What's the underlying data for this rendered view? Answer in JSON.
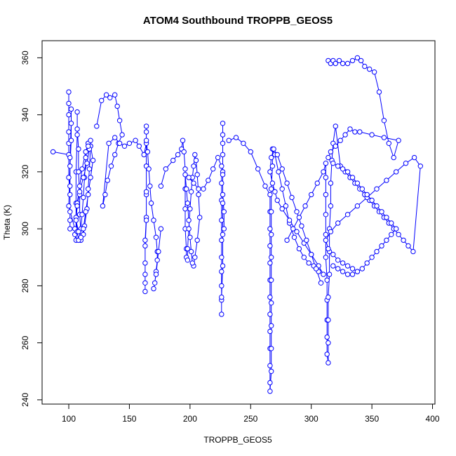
{
  "chart_data": {
    "type": "scatter",
    "title": "ATOM4 Southbound TROPPB_GEOS5",
    "xlabel": "TROPPB_GEOS5",
    "ylabel": "Theta (K)",
    "xlim": [
      78,
      402
    ],
    "ylim": [
      238.5,
      366
    ],
    "xticks": [
      100,
      150,
      200,
      250,
      300,
      350,
      400
    ],
    "yticks": [
      240,
      260,
      280,
      300,
      320,
      340,
      360
    ],
    "grid": false,
    "legend": "none",
    "marker": "open-circle",
    "connect_points": true,
    "color": "#0000ff",
    "series": [
      {
        "x": [
          87,
          100,
          100,
          100,
          100,
          100,
          100,
          100,
          101,
          101,
          101,
          101,
          101,
          101,
          102,
          102,
          102,
          101,
          100,
          105,
          105,
          106,
          106,
          106,
          107,
          107,
          107,
          108,
          108,
          109,
          109,
          110,
          110,
          111,
          112,
          113,
          114,
          116,
          118,
          117,
          116,
          115,
          113,
          112,
          110,
          108,
          107,
          106,
          107,
          109,
          111,
          114,
          116,
          118,
          120,
          118,
          116,
          114,
          112,
          110,
          108,
          106,
          107,
          109,
          112,
          115,
          117,
          118,
          116
        ],
        "y": [
          327,
          326,
          334,
          344,
          348,
          340,
          330,
          318,
          312,
          306,
          303,
          300,
          315,
          325,
          337,
          342,
          331,
          322,
          308,
          300,
          298,
          296,
          309,
          320,
          333,
          341,
          335,
          328,
          320,
          312,
          305,
          299,
          300,
          305,
          311,
          318,
          325,
          330,
          329,
          321,
          314,
          307,
          301,
          298,
          296,
          296,
          299,
          304,
          309,
          315,
          321,
          327,
          330,
          329,
          324,
          318,
          312,
          306,
          300,
          297,
          299,
          303,
          308,
          313,
          318,
          323,
          328,
          331,
          329
        ]
      },
      {
        "x": [
          123,
          127,
          131,
          134,
          138,
          140,
          142,
          144,
          141,
          138,
          135,
          132,
          130,
          128,
          133,
          138,
          142,
          146,
          150,
          155,
          158,
          162,
          164,
          164,
          164,
          164,
          164,
          164,
          163,
          163,
          163,
          163,
          163,
          163,
          164,
          164,
          164,
          164,
          165,
          166,
          167,
          168,
          170,
          172,
          173,
          173,
          172,
          171,
          170,
          172,
          174,
          176
        ],
        "y": [
          336,
          345,
          347,
          346,
          347,
          343,
          338,
          333,
          330,
          326,
          322,
          317,
          312,
          308,
          330,
          332,
          330,
          329,
          330,
          331,
          329,
          326,
          330,
          334,
          336,
          322,
          312,
          304,
          296,
          288,
          281,
          278,
          284,
          294,
          303,
          313,
          322,
          331,
          327,
          321,
          315,
          309,
          303,
          297,
          292,
          289,
          285,
          281,
          279,
          284,
          292,
          300
        ]
      },
      {
        "x": [
          176,
          180,
          186,
          190,
          193,
          194,
          195,
          196,
          196,
          196,
          196,
          197,
          197,
          198,
          198,
          199,
          200,
          201,
          202,
          203,
          204,
          205,
          206,
          207,
          208,
          206,
          204,
          203,
          202,
          201,
          200,
          199,
          198,
          197,
          196,
          199,
          203,
          207,
          211,
          215,
          219,
          223,
          226,
          226,
          226,
          226,
          226,
          226,
          226,
          226,
          226,
          226,
          226,
          227,
          227,
          227,
          227,
          227,
          227,
          227,
          227,
          227,
          227,
          228,
          228
        ],
        "y": [
          315,
          321,
          324,
          326,
          328,
          331,
          327,
          321,
          314,
          307,
          300,
          293,
          290,
          289,
          293,
          300,
          307,
          313,
          318,
          322,
          326,
          324,
          319,
          312,
          304,
          296,
          290,
          287,
          288,
          292,
          297,
          303,
          309,
          314,
          319,
          318,
          316,
          314,
          314,
          317,
          321,
          325,
          322,
          316,
          310,
          303,
          296,
          290,
          285,
          280,
          275,
          270,
          276,
          287,
          298,
          309,
          320,
          330,
          337,
          333,
          326,
          319,
          312,
          306,
          300
        ]
      },
      {
        "x": [
          232,
          238,
          244,
          250,
          256,
          262,
          266,
          266,
          266,
          266,
          266,
          266,
          266,
          266,
          266,
          266,
          266,
          266,
          266,
          267,
          267,
          267,
          267,
          267,
          267,
          267,
          267,
          267,
          268,
          268,
          270,
          273,
          276,
          279,
          282,
          286,
          290,
          294,
          298,
          302,
          306,
          310,
          306,
          300,
          294,
          288,
          282,
          276,
          272,
          270,
          268,
          266,
          267,
          269,
          272,
          276,
          280,
          284,
          288,
          292,
          296,
          300,
          304,
          308
        ],
        "y": [
          331,
          332,
          330,
          327,
          321,
          315,
          312,
          306,
          300,
          294,
          288,
          282,
          276,
          270,
          264,
          258,
          252,
          246,
          243,
          250,
          258,
          266,
          274,
          282,
          290,
          298,
          306,
          314,
          322,
          328,
          326,
          320,
          314,
          308,
          302,
          297,
          293,
          290,
          288,
          287,
          285,
          284,
          287,
          291,
          295,
          299,
          303,
          307,
          310,
          313,
          316,
          320,
          325,
          328,
          326,
          321,
          316,
          311,
          306,
          301,
          296,
          291,
          286,
          281
        ]
      },
      {
        "x": [
          280,
          285,
          290,
          295,
          300,
          305,
          310,
          312,
          312,
          312,
          312,
          312,
          312,
          313,
          313,
          313,
          313,
          313,
          314,
          314,
          314,
          314,
          315,
          315,
          315,
          316,
          316,
          317,
          318,
          320,
          324,
          328,
          332,
          336,
          340,
          344,
          348,
          352,
          356,
          360,
          364,
          368,
          372,
          376,
          380,
          384,
          390,
          385,
          378,
          370,
          362,
          354,
          346,
          338,
          330,
          322,
          316,
          312,
          314,
          318,
          322,
          326,
          330,
          334,
          338
        ],
        "y": [
          296,
          300,
          304,
          308,
          312,
          316,
          320,
          323,
          318,
          312,
          305,
          298,
          290,
          282,
          275,
          268,
          262,
          256,
          253,
          260,
          268,
          276,
          284,
          292,
          300,
          308,
          316,
          324,
          330,
          336,
          322,
          320,
          318,
          316,
          314,
          312,
          310,
          308,
          306,
          304,
          302,
          300,
          298,
          296,
          294,
          292,
          322,
          325,
          323,
          320,
          317,
          314,
          311,
          308,
          305,
          302,
          299,
          296,
          293,
          291,
          289,
          288,
          287,
          286,
          285
        ]
      },
      {
        "x": [
          314,
          316,
          318,
          320,
          323,
          326,
          330,
          334,
          338,
          341,
          344,
          348,
          352,
          356,
          360,
          364,
          368,
          372,
          360,
          350,
          340,
          336,
          332,
          328,
          324,
          320,
          316,
          314
        ],
        "y": [
          359,
          358,
          359,
          358,
          359,
          358,
          358,
          359,
          360,
          359,
          357,
          356,
          355,
          348,
          338,
          330,
          325,
          331,
          332,
          333,
          334,
          334,
          335,
          333,
          331,
          329,
          327,
          325
        ]
      },
      {
        "x": [
          318,
          322,
          326,
          330,
          334,
          338,
          342,
          346,
          350,
          354,
          358,
          362,
          366,
          370,
          366,
          362,
          358,
          354,
          350,
          346,
          342,
          338,
          334,
          330,
          326,
          322,
          318
        ],
        "y": [
          287,
          286,
          285,
          284,
          284,
          285,
          286,
          288,
          290,
          292,
          294,
          296,
          298,
          300,
          302,
          304,
          306,
          308,
          310,
          312,
          314,
          316,
          318,
          320,
          321,
          322,
          323
        ]
      }
    ]
  }
}
